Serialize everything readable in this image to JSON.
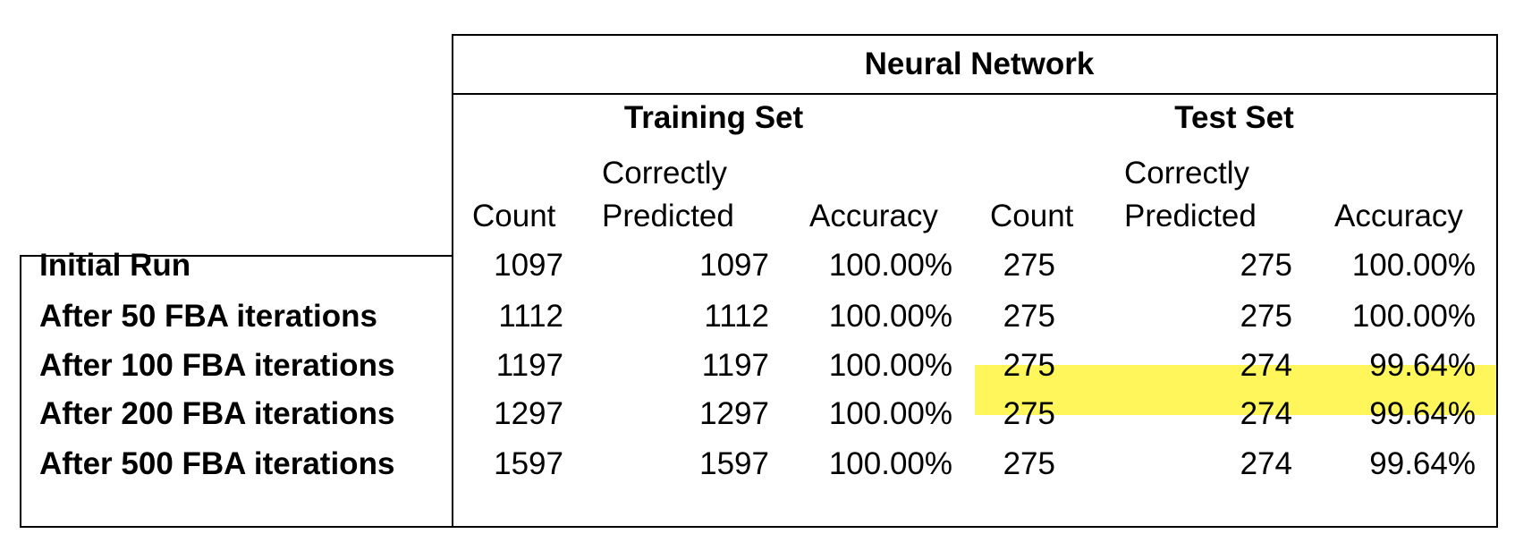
{
  "colors": {
    "highlight": "#fef65b",
    "border": "#000000",
    "text": "#000000"
  },
  "chart_data": {
    "type": "table",
    "group_header": "Neural Network",
    "subgroups": [
      "Training Set",
      "Test Set"
    ],
    "column_headers": [
      {
        "line1": "",
        "line2": "Count"
      },
      {
        "line1": "Correctly",
        "line2": "Predicted"
      },
      {
        "line1": "",
        "line2": "Accuracy"
      },
      {
        "line1": "",
        "line2": "Count"
      },
      {
        "line1": "Correctly",
        "line2": "Predicted"
      },
      {
        "line1": "",
        "line2": "Accuracy"
      }
    ],
    "rows": [
      {
        "label": "Initial Run",
        "values": [
          "1097",
          "1097",
          "100.00%",
          "275",
          "275",
          "100.00%"
        ]
      },
      {
        "label": "After 50 FBA iterations",
        "values": [
          "1112",
          "1112",
          "100.00%",
          "275",
          "275",
          "100.00%"
        ]
      },
      {
        "label": "After 100 FBA iterations",
        "values": [
          "1197",
          "1197",
          "100.00%",
          "275",
          "274",
          "99.64%"
        ]
      },
      {
        "label": "After 200 FBA iterations",
        "values": [
          "1297",
          "1297",
          "100.00%",
          "275",
          "274",
          "99.64%"
        ]
      },
      {
        "label": "After 500 FBA iterations",
        "values": [
          "1597",
          "1597",
          "100.00%",
          "275",
          "274",
          "99.64%"
        ]
      }
    ],
    "highlighted_cells": {
      "row": 2,
      "columns": [
        3,
        4,
        5
      ]
    }
  }
}
